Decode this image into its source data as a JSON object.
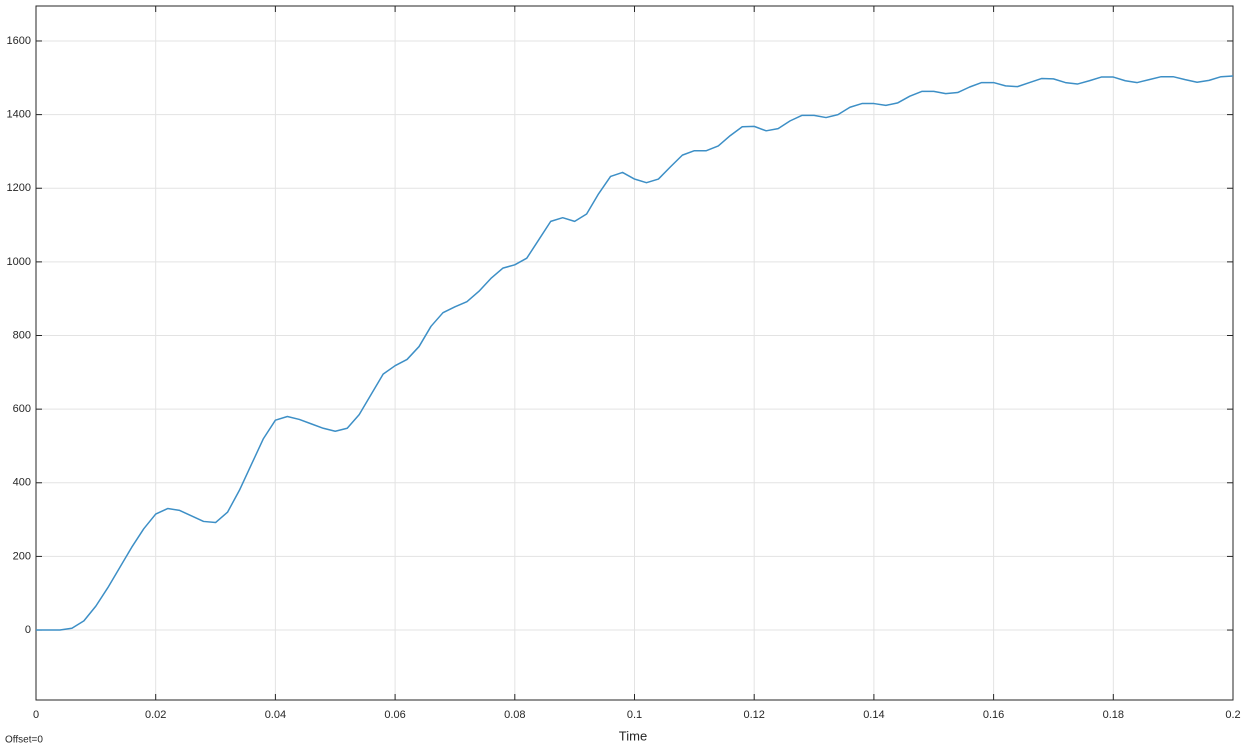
{
  "chart_data": {
    "type": "line",
    "x_label": "Time",
    "annotation": "Offset=0",
    "x": [
      0,
      0.002,
      0.004,
      0.006,
      0.008,
      0.01,
      0.012,
      0.014,
      0.016,
      0.018,
      0.02,
      0.022,
      0.024,
      0.026,
      0.028,
      0.03,
      0.032,
      0.034,
      0.036,
      0.038,
      0.04,
      0.042,
      0.044,
      0.046,
      0.048,
      0.05,
      0.052,
      0.054,
      0.056,
      0.058,
      0.06,
      0.062,
      0.064,
      0.066,
      0.068,
      0.07,
      0.072,
      0.074,
      0.076,
      0.078,
      0.08,
      0.082,
      0.084,
      0.086,
      0.088,
      0.09,
      0.092,
      0.094,
      0.096,
      0.098,
      0.1,
      0.102,
      0.104,
      0.106,
      0.108,
      0.11,
      0.112,
      0.114,
      0.116,
      0.118,
      0.12,
      0.122,
      0.124,
      0.126,
      0.128,
      0.13,
      0.132,
      0.134,
      0.136,
      0.138,
      0.14,
      0.142,
      0.144,
      0.146,
      0.148,
      0.15,
      0.152,
      0.154,
      0.156,
      0.158,
      0.16,
      0.162,
      0.164,
      0.166,
      0.168,
      0.17,
      0.172,
      0.174,
      0.176,
      0.178,
      0.18,
      0.182,
      0.184,
      0.186,
      0.188,
      0.19,
      0.192,
      0.194,
      0.196,
      0.198,
      0.2
    ],
    "values": [
      0,
      0,
      0,
      5,
      25,
      65,
      115,
      170,
      225,
      275,
      315,
      330,
      325,
      310,
      295,
      292,
      320,
      380,
      450,
      520,
      570,
      580,
      572,
      560,
      548,
      540,
      548,
      585,
      640,
      695,
      718,
      735,
      770,
      825,
      862,
      878,
      892,
      920,
      955,
      983,
      992,
      1010,
      1060,
      1110,
      1120,
      1110,
      1130,
      1185,
      1232,
      1243,
      1225,
      1215,
      1225,
      1258,
      1290,
      1302,
      1302,
      1315,
      1343,
      1367,
      1368,
      1356,
      1362,
      1383,
      1398,
      1398,
      1392,
      1400,
      1420,
      1430,
      1430,
      1425,
      1432,
      1450,
      1463,
      1463,
      1457,
      1460,
      1475,
      1487,
      1487,
      1478,
      1476,
      1487,
      1498,
      1497,
      1487,
      1483,
      1492,
      1502,
      1502,
      1492,
      1487,
      1495,
      1503,
      1503,
      1495,
      1488,
      1493,
      1503,
      1505
    ],
    "color": "#3d8fc6",
    "xlim": [
      0,
      0.2
    ],
    "xticks": [
      0,
      0.02,
      0.04,
      0.06,
      0.08,
      0.1,
      0.12,
      0.14,
      0.16,
      0.18,
      0.2
    ],
    "ylim": [
      -190,
      1695
    ],
    "yticks": [
      0,
      200,
      400,
      600,
      800,
      1000,
      1200,
      1400,
      1600
    ],
    "grid": true
  }
}
